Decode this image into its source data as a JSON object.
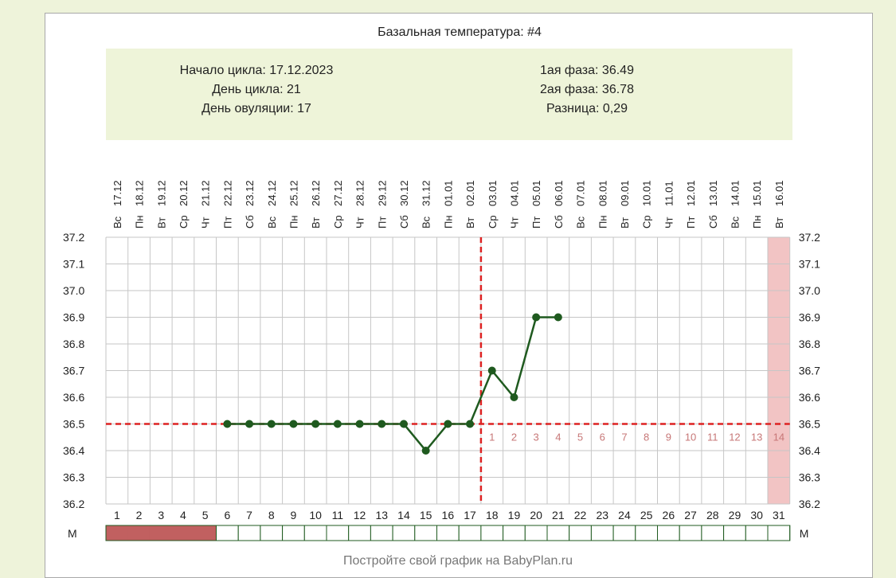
{
  "title": "Базальная температура: #4",
  "info": {
    "left": [
      "Начало цикла: 17.12.2023",
      "День цикла: 21",
      "День овуляции: 17"
    ],
    "right": [
      "1ая фаза: 36.49",
      "2ая фаза: 36.78",
      "Разница: 0,29"
    ]
  },
  "colors": {
    "info_bg": "#eef4d9",
    "line": "#1f5a1f",
    "coverline": "#dd2222",
    "menses": "#c16060",
    "highlight": "#f2c4c4",
    "grid": "#c6c6c6",
    "phase2_text": "#c77777"
  },
  "footer": "Постройте свой график на BabyPlan.ru",
  "menses_label": "М",
  "chart_data": {
    "type": "line",
    "title": "Базальная температура: #4",
    "days": [
      {
        "n": 1,
        "wd": "Вс",
        "date": "17.12"
      },
      {
        "n": 2,
        "wd": "Пн",
        "date": "18.12"
      },
      {
        "n": 3,
        "wd": "Вт",
        "date": "19.12"
      },
      {
        "n": 4,
        "wd": "Ср",
        "date": "20.12"
      },
      {
        "n": 5,
        "wd": "Чт",
        "date": "21.12"
      },
      {
        "n": 6,
        "wd": "Пт",
        "date": "22.12"
      },
      {
        "n": 7,
        "wd": "Сб",
        "date": "23.12"
      },
      {
        "n": 8,
        "wd": "Вс",
        "date": "24.12"
      },
      {
        "n": 9,
        "wd": "Пн",
        "date": "25.12"
      },
      {
        "n": 10,
        "wd": "Вт",
        "date": "26.12"
      },
      {
        "n": 11,
        "wd": "Ср",
        "date": "27.12"
      },
      {
        "n": 12,
        "wd": "Чт",
        "date": "28.12"
      },
      {
        "n": 13,
        "wd": "Пт",
        "date": "29.12"
      },
      {
        "n": 14,
        "wd": "Сб",
        "date": "30.12"
      },
      {
        "n": 15,
        "wd": "Вс",
        "date": "31.12"
      },
      {
        "n": 16,
        "wd": "Пн",
        "date": "01.01"
      },
      {
        "n": 17,
        "wd": "Вт",
        "date": "02.01"
      },
      {
        "n": 18,
        "wd": "Ср",
        "date": "03.01"
      },
      {
        "n": 19,
        "wd": "Чт",
        "date": "04.01"
      },
      {
        "n": 20,
        "wd": "Пт",
        "date": "05.01"
      },
      {
        "n": 21,
        "wd": "Сб",
        "date": "06.01"
      },
      {
        "n": 22,
        "wd": "Вс",
        "date": "07.01"
      },
      {
        "n": 23,
        "wd": "Пн",
        "date": "08.01"
      },
      {
        "n": 24,
        "wd": "Вт",
        "date": "09.01"
      },
      {
        "n": 25,
        "wd": "Ср",
        "date": "10.01"
      },
      {
        "n": 26,
        "wd": "Чт",
        "date": "11.01"
      },
      {
        "n": 27,
        "wd": "Пт",
        "date": "12.01"
      },
      {
        "n": 28,
        "wd": "Сб",
        "date": "13.01"
      },
      {
        "n": 29,
        "wd": "Вс",
        "date": "14.01"
      },
      {
        "n": 30,
        "wd": "Пн",
        "date": "15.01"
      },
      {
        "n": 31,
        "wd": "Вт",
        "date": "16.01"
      }
    ],
    "yticks": [
      "37.2",
      "37.1",
      "37.0",
      "36.9",
      "36.8",
      "36.7",
      "36.6",
      "36.5",
      "36.4",
      "36.3",
      "36.2"
    ],
    "ylim": [
      36.2,
      37.2
    ],
    "points": [
      {
        "day": 6,
        "temp": 36.5
      },
      {
        "day": 7,
        "temp": 36.5
      },
      {
        "day": 8,
        "temp": 36.5
      },
      {
        "day": 9,
        "temp": 36.5
      },
      {
        "day": 10,
        "temp": 36.5
      },
      {
        "day": 11,
        "temp": 36.5
      },
      {
        "day": 12,
        "temp": 36.5
      },
      {
        "day": 13,
        "temp": 36.5
      },
      {
        "day": 14,
        "temp": 36.5
      },
      {
        "day": 15,
        "temp": 36.4
      },
      {
        "day": 16,
        "temp": 36.5
      },
      {
        "day": 17,
        "temp": 36.5
      },
      {
        "day": 18,
        "temp": 36.7
      },
      {
        "day": 19,
        "temp": 36.6
      },
      {
        "day": 20,
        "temp": 36.9
      },
      {
        "day": 21,
        "temp": 36.9
      }
    ],
    "coverline_temp": 36.5,
    "ovulation_day": 17,
    "phase2_labels": [
      "1",
      "2",
      "3",
      "4",
      "5",
      "6",
      "7",
      "8",
      "9",
      "10",
      "11",
      "12",
      "13",
      "14"
    ],
    "highlight_day": 31,
    "menses_days": [
      1,
      2,
      3,
      4,
      5
    ],
    "grid": true
  }
}
